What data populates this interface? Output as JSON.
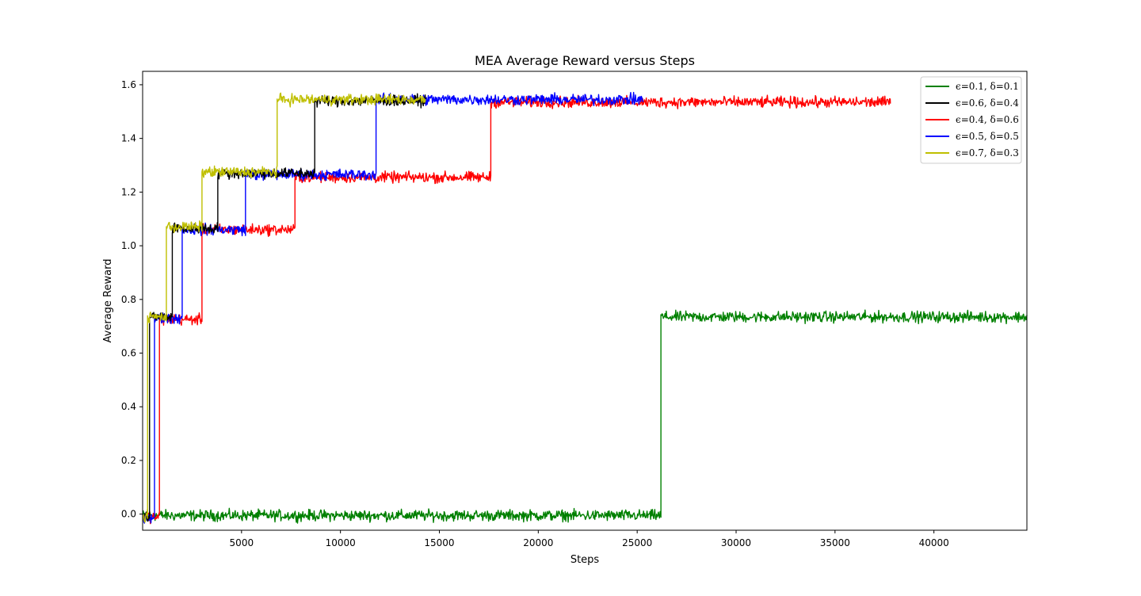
{
  "chart_data": {
    "type": "line",
    "title": "MEA Average Reward versus Steps",
    "xlabel": "Steps",
    "ylabel": "Average Reward",
    "xlim": [
      0,
      44700
    ],
    "ylim": [
      -0.06,
      1.65
    ],
    "xticks": [
      5000,
      10000,
      15000,
      20000,
      25000,
      30000,
      35000,
      40000
    ],
    "xtick_labels": [
      "5000",
      "10000",
      "15000",
      "20000",
      "25000",
      "30000",
      "35000",
      "40000"
    ],
    "yticks": [
      0.0,
      0.2,
      0.4,
      0.6,
      0.8,
      1.0,
      1.2,
      1.4,
      1.6
    ],
    "ytick_labels": [
      "0.0",
      "0.2",
      "0.4",
      "0.6",
      "0.8",
      "1.0",
      "1.2",
      "1.4",
      "1.6"
    ],
    "grid": false,
    "legend_position": "top-right",
    "noise_amplitude": 0.02,
    "series": [
      {
        "name": "ϵ=0.1, δ=0.1",
        "color": "#008000",
        "end_x": 44700,
        "segments": [
          [
            0,
            -0.005
          ],
          [
            26200,
            0.735
          ]
        ]
      },
      {
        "name": "ϵ=0.6, δ=0.4",
        "color": "#000000",
        "end_x": 14300,
        "segments": [
          [
            0,
            -0.01
          ],
          [
            350,
            0.735
          ],
          [
            1500,
            1.065
          ],
          [
            3800,
            1.27
          ],
          [
            8700,
            1.54
          ]
        ]
      },
      {
        "name": "ϵ=0.4, δ=0.6",
        "color": "#ff0000",
        "end_x": 37800,
        "segments": [
          [
            0,
            -0.01
          ],
          [
            850,
            0.725
          ],
          [
            3000,
            1.06
          ],
          [
            7700,
            1.255
          ],
          [
            17600,
            1.535
          ]
        ]
      },
      {
        "name": "ϵ=0.5, δ=0.5",
        "color": "#0000ff",
        "end_x": 25300,
        "segments": [
          [
            0,
            -0.01
          ],
          [
            600,
            0.73
          ],
          [
            2000,
            1.06
          ],
          [
            5200,
            1.265
          ],
          [
            11800,
            1.545
          ]
        ]
      },
      {
        "name": "ϵ=0.7, δ=0.3",
        "color": "#bfbf00",
        "end_x": 14300,
        "segments": [
          [
            0,
            -0.01
          ],
          [
            250,
            0.735
          ],
          [
            1200,
            1.07
          ],
          [
            3000,
            1.275
          ],
          [
            6800,
            1.545
          ]
        ]
      }
    ],
    "draw_order": [
      0,
      2,
      3,
      1,
      4
    ]
  }
}
